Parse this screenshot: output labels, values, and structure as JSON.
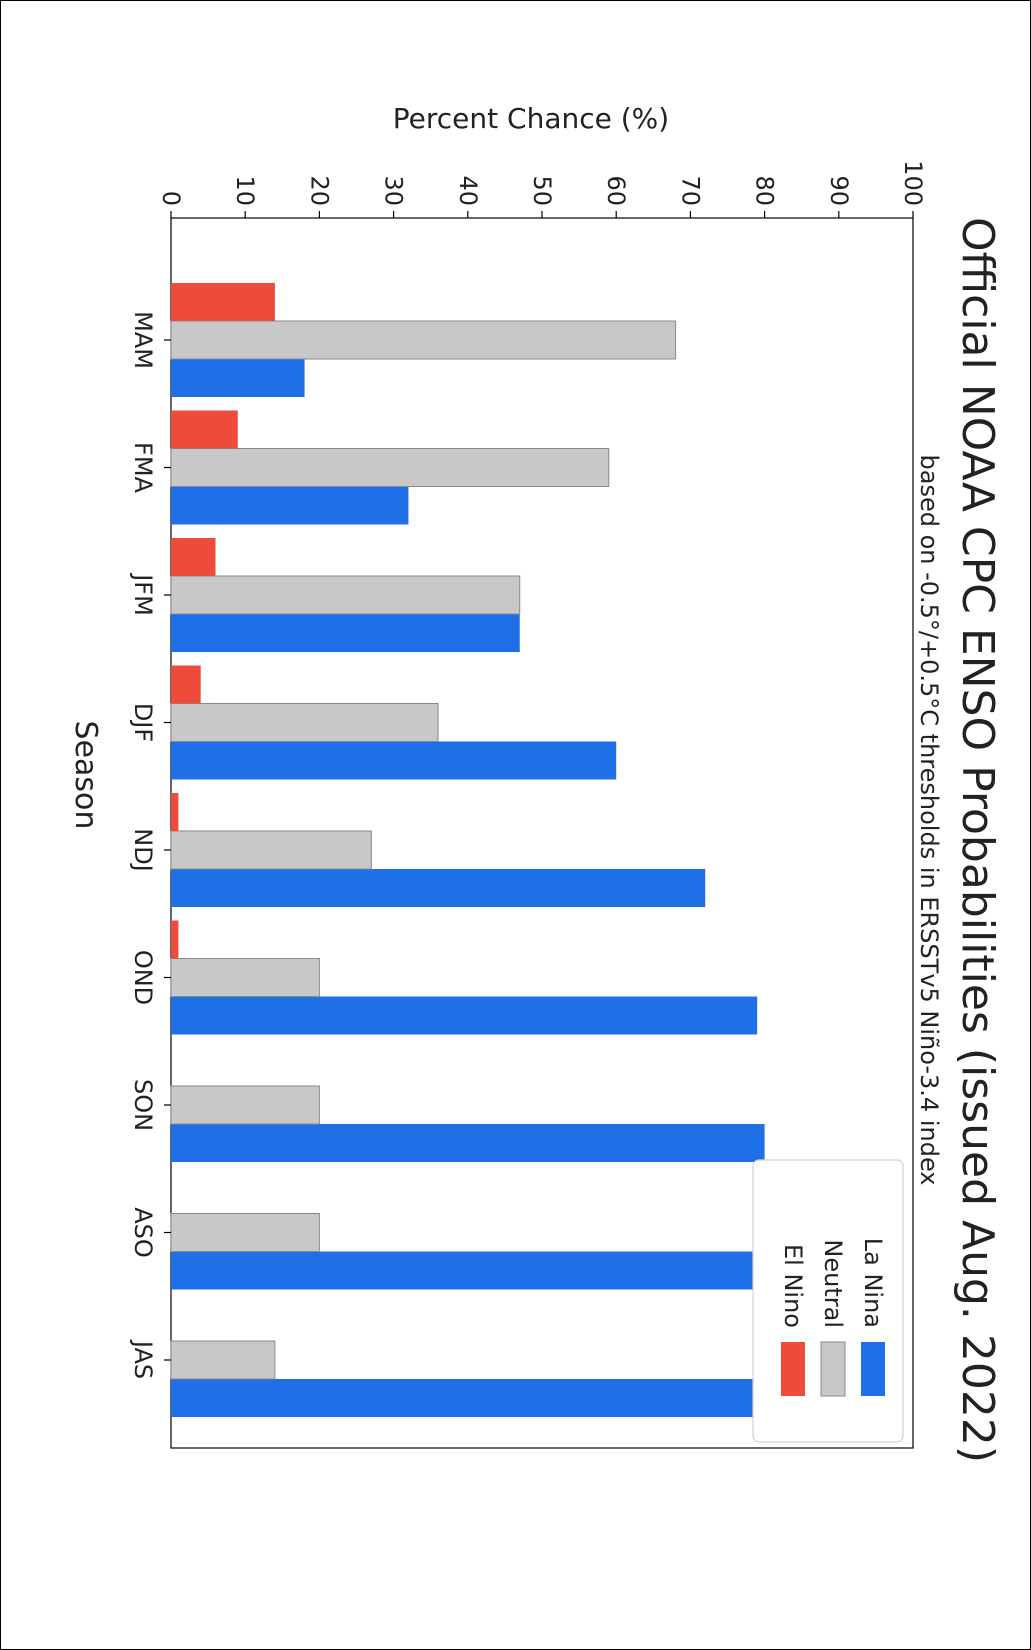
{
  "chart_data": {
    "type": "bar",
    "orientation": "rotated-90-clockwise",
    "title": "Official NOAA CPC ENSO Probabilities (issued Aug. 2022)",
    "subtitle": "based on -0.5°/+0.5°C thresholds in ERSSTv5 Niño-3.4 index",
    "xlabel": "Season",
    "ylabel": "Percent Chance (%)",
    "ylim": [
      0,
      100
    ],
    "yticks": [
      "0",
      "10",
      "20",
      "30",
      "40",
      "50",
      "60",
      "70",
      "80",
      "90",
      "100"
    ],
    "categories": [
      "JAS",
      "ASO",
      "SON",
      "OND",
      "NDJ",
      "DJF",
      "JFM",
      "FMA",
      "MAM"
    ],
    "series": [
      {
        "name": "La Nina",
        "color": "#1f6fe8",
        "values": [
          86,
          80,
          80,
          79,
          72,
          60,
          47,
          32,
          18
        ]
      },
      {
        "name": "Neutral",
        "color": "#c8c8c8",
        "values": [
          14,
          20,
          20,
          20,
          27,
          36,
          47,
          59,
          68
        ]
      },
      {
        "name": "El Nino",
        "color": "#ee4b3a",
        "values": [
          0,
          0,
          0,
          1,
          1,
          4,
          6,
          9,
          14
        ]
      }
    ],
    "legend": "top-left"
  }
}
